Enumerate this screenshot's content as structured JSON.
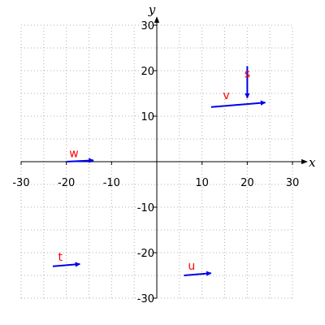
{
  "chart_data": {
    "type": "vector-field",
    "xlabel": "x",
    "ylabel": "y",
    "xlim": [
      -30,
      30
    ],
    "ylim": [
      -30,
      30
    ],
    "x_ticks": [
      -30,
      -20,
      -10,
      10,
      20,
      30
    ],
    "y_ticks": [
      -30,
      -20,
      -10,
      10,
      20,
      30
    ],
    "grid": true,
    "grid_style": "dotted",
    "vector_color": "#0000ee",
    "label_color": "#ff0000",
    "vectors": [
      {
        "name": "s",
        "x0": 20,
        "y0": 21,
        "x1": 20,
        "y1": 14
      },
      {
        "name": "v",
        "x0": 12,
        "y0": 12,
        "x1": 24,
        "y1": 13
      },
      {
        "name": "w",
        "x0": -20,
        "y0": 0,
        "x1": -14,
        "y1": 0.3
      },
      {
        "name": "t",
        "x0": -23,
        "y0": -23,
        "x1": -17,
        "y1": -22.5
      },
      {
        "name": "u",
        "x0": 6,
        "y0": -25,
        "x1": 12,
        "y1": -24.5
      }
    ]
  }
}
